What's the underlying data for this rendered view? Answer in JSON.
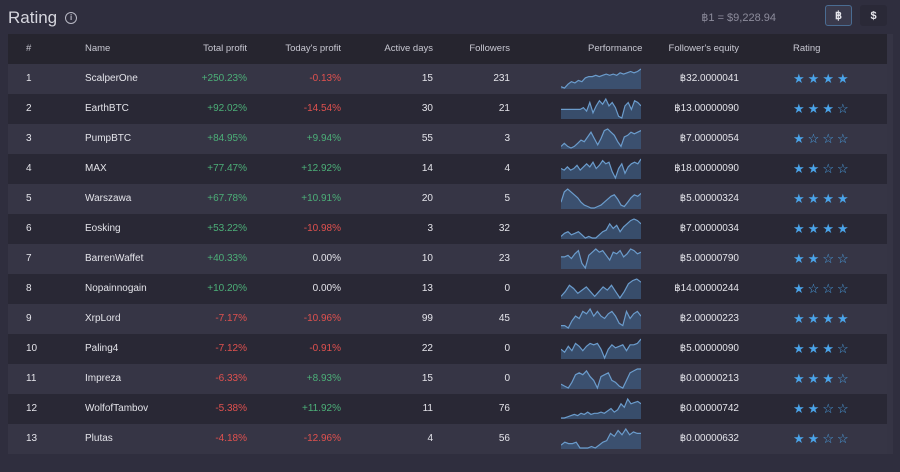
{
  "header": {
    "title": "Rating",
    "info_icon": "info-icon",
    "rate": "฿1 = $9,228.94",
    "currency_buttons": [
      {
        "label": "฿",
        "active": true
      },
      {
        "label": "$",
        "active": false
      }
    ]
  },
  "columns": [
    "#",
    "Name",
    "Total profit",
    "Today's profit",
    "Active days",
    "Followers",
    "Performance",
    "Follower's equity",
    "Rating"
  ],
  "colors": {
    "positive": "#4caf78",
    "negative": "#e0514f",
    "accent": "#4aa3e8"
  },
  "rows": [
    {
      "rank": "1",
      "name": "ScalperOne",
      "total": "+250.23%",
      "today": "-0.13%",
      "days": "15",
      "followers": "231",
      "equity": "฿32.0000041",
      "stars": 4,
      "perf": [
        2,
        1,
        4,
        6,
        5,
        7,
        6,
        9,
        10,
        10,
        11,
        10,
        11,
        12,
        11,
        12,
        11,
        13,
        12,
        13,
        14,
        13,
        14,
        16
      ]
    },
    {
      "rank": "2",
      "name": "EarthBTC",
      "total": "+92.02%",
      "today": "-14.54%",
      "days": "30",
      "followers": "21",
      "equity": "฿13.00000090",
      "stars": 3,
      "perf": [
        8,
        8,
        8,
        8,
        8,
        8,
        8,
        9,
        7,
        12,
        6,
        10,
        13,
        11,
        14,
        10,
        12,
        9,
        4,
        3,
        10,
        12,
        8,
        13,
        12,
        10
      ]
    },
    {
      "rank": "3",
      "name": "PumpBTC",
      "total": "+84.95%",
      "today": "+9.94%",
      "days": "55",
      "followers": "3",
      "equity": "฿7.00000054",
      "stars": 1,
      "perf": [
        3,
        5,
        3,
        2,
        3,
        5,
        7,
        6,
        9,
        12,
        8,
        4,
        8,
        13,
        14,
        12,
        10,
        6,
        3,
        9,
        10,
        12,
        11,
        12,
        13
      ]
    },
    {
      "rank": "4",
      "name": "MAX",
      "total": "+77.47%",
      "today": "+12.92%",
      "days": "14",
      "followers": "4",
      "equity": "฿18.00000090",
      "stars": 2,
      "perf": [
        8,
        7,
        9,
        7,
        8,
        10,
        7,
        9,
        11,
        9,
        12,
        8,
        10,
        13,
        11,
        12,
        6,
        2,
        8,
        11,
        5,
        9,
        11,
        12,
        11,
        14
      ]
    },
    {
      "rank": "5",
      "name": "Warszawa",
      "total": "+67.78%",
      "today": "+10.91%",
      "days": "20",
      "followers": "5",
      "equity": "฿5.00000324",
      "stars": 4,
      "perf": [
        5,
        12,
        14,
        12,
        10,
        8,
        5,
        3,
        2,
        1,
        1,
        2,
        3,
        5,
        7,
        9,
        10,
        7,
        3,
        2,
        5,
        8,
        10,
        9,
        11
      ]
    },
    {
      "rank": "6",
      "name": "Eosking",
      "total": "+53.22%",
      "today": "-10.98%",
      "days": "3",
      "followers": "32",
      "equity": "฿7.00000034",
      "stars": 4,
      "perf": [
        3,
        5,
        6,
        4,
        5,
        6,
        4,
        2,
        3,
        2,
        2,
        4,
        6,
        7,
        11,
        8,
        10,
        6,
        9,
        11,
        13,
        14,
        13,
        11
      ]
    },
    {
      "rank": "7",
      "name": "BarrenWaffet",
      "total": "+40.33%",
      "today": "0.00%",
      "days": "10",
      "followers": "23",
      "equity": "฿5.00000790",
      "stars": 2,
      "perf": [
        8,
        8,
        9,
        7,
        10,
        12,
        4,
        1,
        9,
        11,
        13,
        11,
        12,
        9,
        6,
        11,
        10,
        12,
        8,
        10,
        13,
        12,
        10,
        11
      ]
    },
    {
      "rank": "8",
      "name": "Nopainnogain",
      "total": "+10.20%",
      "today": "0.00%",
      "days": "13",
      "followers": "0",
      "equity": "฿14.00000244",
      "stars": 1,
      "perf": [
        2,
        5,
        9,
        7,
        4,
        6,
        8,
        5,
        2,
        5,
        8,
        6,
        9,
        5,
        1,
        5,
        10,
        12,
        13,
        11
      ]
    },
    {
      "rank": "9",
      "name": "XrpLord",
      "total": "-7.17%",
      "today": "-10.96%",
      "days": "99",
      "followers": "45",
      "equity": "฿2.00000223",
      "stars": 4,
      "perf": [
        4,
        4,
        3,
        6,
        8,
        7,
        10,
        9,
        11,
        8,
        10,
        8,
        7,
        9,
        10,
        8,
        5,
        4,
        10,
        7,
        9,
        10,
        8
      ]
    },
    {
      "rank": "10",
      "name": "Paling4",
      "total": "-7.12%",
      "today": "-0.91%",
      "days": "22",
      "followers": "0",
      "equity": "฿5.00000090",
      "stars": 3,
      "perf": [
        8,
        6,
        10,
        7,
        12,
        10,
        7,
        10,
        12,
        11,
        12,
        8,
        2,
        8,
        11,
        9,
        10,
        11,
        7,
        11,
        11,
        12,
        15
      ]
    },
    {
      "rank": "11",
      "name": "Impreza",
      "total": "-6.33%",
      "today": "+8.93%",
      "days": "15",
      "followers": "0",
      "equity": "฿0.00000213",
      "stars": 3,
      "perf": [
        7,
        6,
        5,
        8,
        12,
        13,
        12,
        14,
        11,
        9,
        5,
        11,
        12,
        13,
        9,
        8,
        6,
        5,
        9,
        13,
        14,
        15,
        15
      ]
    },
    {
      "rank": "12",
      "name": "WolfofTambov",
      "total": "-5.38%",
      "today": "+11.92%",
      "days": "11",
      "followers": "76",
      "equity": "฿0.00000742",
      "stars": 2,
      "perf": [
        1,
        1,
        2,
        3,
        4,
        3,
        5,
        4,
        6,
        4,
        5,
        5,
        6,
        5,
        7,
        9,
        6,
        8,
        13,
        10,
        17,
        13,
        14,
        15,
        13
      ]
    },
    {
      "rank": "13",
      "name": "Plutas",
      "total": "-4.18%",
      "today": "-12.96%",
      "days": "4",
      "followers": "56",
      "equity": "฿0.00000632",
      "stars": 2,
      "perf": [
        4,
        6,
        5,
        5,
        6,
        2,
        2,
        2,
        3,
        2,
        4,
        6,
        7,
        12,
        10,
        14,
        11,
        15,
        11,
        13,
        12,
        12
      ]
    }
  ]
}
